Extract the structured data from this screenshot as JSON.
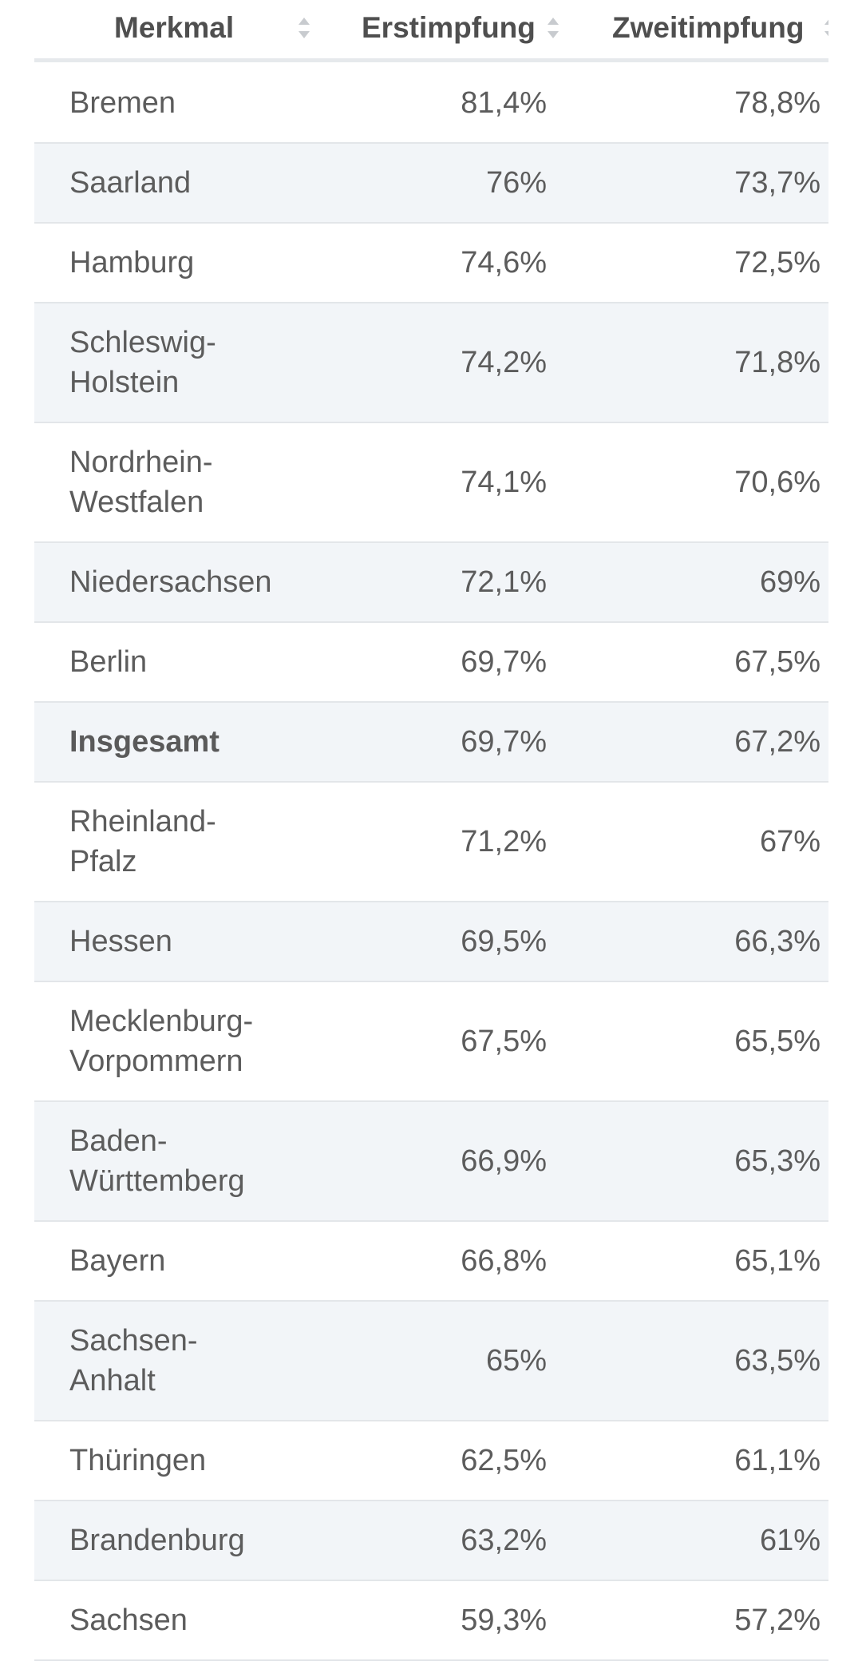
{
  "chart_data": {
    "type": "table",
    "columns": [
      "Merkmal",
      "Erstimpfung",
      "Zweitimpfung"
    ],
    "rows": [
      {
        "merkmal": "Bremen",
        "erst": "81,4%",
        "zweit": "78,8%",
        "lines": [
          "Bremen"
        ]
      },
      {
        "merkmal": "Saarland",
        "erst": "76%",
        "zweit": "73,7%",
        "lines": [
          "Saarland"
        ]
      },
      {
        "merkmal": "Hamburg",
        "erst": "74,6%",
        "zweit": "72,5%",
        "lines": [
          "Hamburg"
        ]
      },
      {
        "merkmal": "Schleswig-Holstein",
        "erst": "74,2%",
        "zweit": "71,8%",
        "lines": [
          "Schleswig-",
          "Holstein"
        ]
      },
      {
        "merkmal": "Nordrhein-Westfalen",
        "erst": "74,1%",
        "zweit": "70,6%",
        "lines": [
          "Nordrhein-",
          "Westfalen"
        ]
      },
      {
        "merkmal": "Niedersachsen",
        "erst": "72,1%",
        "zweit": "69%",
        "lines": [
          "Niedersachsen"
        ]
      },
      {
        "merkmal": "Berlin",
        "erst": "69,7%",
        "zweit": "67,5%",
        "lines": [
          "Berlin"
        ]
      },
      {
        "merkmal": "Insgesamt",
        "erst": "69,7%",
        "zweit": "67,2%",
        "lines": [
          "Insgesamt"
        ],
        "bold": true
      },
      {
        "merkmal": "Rheinland-Pfalz",
        "erst": "71,2%",
        "zweit": "67%",
        "lines": [
          "Rheinland-",
          "Pfalz"
        ]
      },
      {
        "merkmal": "Hessen",
        "erst": "69,5%",
        "zweit": "66,3%",
        "lines": [
          "Hessen"
        ]
      },
      {
        "merkmal": "Mecklenburg-Vorpommern",
        "erst": "67,5%",
        "zweit": "65,5%",
        "lines": [
          "Mecklenburg-",
          "Vorpommern"
        ]
      },
      {
        "merkmal": "Baden-Württemberg",
        "erst": "66,9%",
        "zweit": "65,3%",
        "lines": [
          "Baden-",
          "Württemberg"
        ]
      },
      {
        "merkmal": "Bayern",
        "erst": "66,8%",
        "zweit": "65,1%",
        "lines": [
          "Bayern"
        ]
      },
      {
        "merkmal": "Sachsen-Anhalt",
        "erst": "65%",
        "zweit": "63,5%",
        "lines": [
          "Sachsen-",
          "Anhalt"
        ]
      },
      {
        "merkmal": "Thüringen",
        "erst": "62,5%",
        "zweit": "61,1%",
        "lines": [
          "Thüringen"
        ]
      },
      {
        "merkmal": "Brandenburg",
        "erst": "63,2%",
        "zweit": "61%",
        "lines": [
          "Brandenburg"
        ]
      },
      {
        "merkmal": "Sachsen",
        "erst": "59,3%",
        "zweit": "57,2%",
        "lines": [
          "Sachsen"
        ]
      }
    ]
  },
  "colors": {
    "text": "#5c5c5c",
    "header_text": "#4f4f4f",
    "row_alt_bg": "#f2f5f8",
    "divider": "#e3e6e9",
    "sort_icon": "#c8cbcf"
  },
  "icons": {
    "sort": "sort-updown-icon"
  }
}
